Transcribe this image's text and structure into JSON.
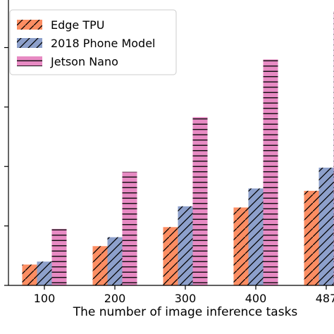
{
  "chart_data": {
    "type": "bar",
    "title": "",
    "xlabel": "The number of image inference tasks",
    "ylabel": "",
    "categories": [
      "100",
      "200",
      "300",
      "400",
      "487"
    ],
    "series": [
      {
        "name": "Edge TPU",
        "values": [
          0.35,
          0.66,
          0.98,
          1.31,
          1.59
        ],
        "color": "#fc8d62",
        "hatch": "backslash"
      },
      {
        "name": "2018 Phone Model",
        "values": [
          0.4,
          0.81,
          1.33,
          1.63,
          1.98
        ],
        "color": "#8da0cb",
        "hatch": "slash"
      },
      {
        "name": "Jetson Nano",
        "values": [
          0.95,
          1.91,
          2.83,
          3.8,
          4.61
        ],
        "color": "#e78ac3",
        "hatch": "horizontal"
      }
    ],
    "ylim": [
      0,
      4.8
    ],
    "yticks": [
      0,
      1,
      2,
      3,
      4
    ],
    "ytick_labels": [
      "",
      "",
      "",
      "",
      ""
    ],
    "grid": false,
    "legend_position": "top-left"
  }
}
